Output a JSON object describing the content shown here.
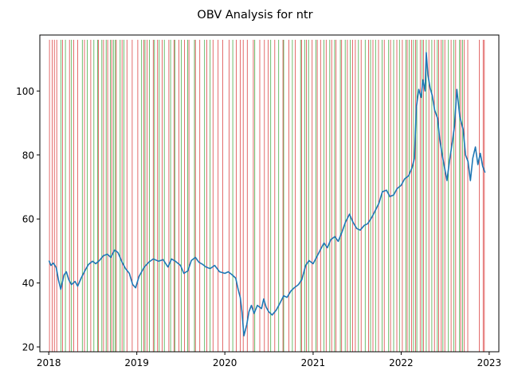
{
  "chart_data": {
    "type": "line",
    "title": "OBV Analysis for ntr",
    "xlabel": "",
    "ylabel": "",
    "x_tick_labels": [
      "2018",
      "2019",
      "2020",
      "2021",
      "2022",
      "2023"
    ],
    "y_tick_labels": [
      "20",
      "40",
      "60",
      "80",
      "100"
    ],
    "xlim": [
      "2017-11-25",
      "2023-02-10"
    ],
    "ylim": [
      18.5,
      117.5
    ],
    "grid": false,
    "series": [
      {
        "color": "#1f77b4",
        "points": [
          [
            "2018-01-02",
            47.0
          ],
          [
            "2018-01-10",
            45.5
          ],
          [
            "2018-01-20",
            46.2
          ],
          [
            "2018-02-01",
            44.8
          ],
          [
            "2018-02-10",
            41.0
          ],
          [
            "2018-02-20",
            38.0
          ],
          [
            "2018-03-05",
            42.5
          ],
          [
            "2018-03-15",
            43.5
          ],
          [
            "2018-03-25",
            41.0
          ],
          [
            "2018-04-05",
            39.5
          ],
          [
            "2018-04-20",
            40.5
          ],
          [
            "2018-05-01",
            39.0
          ],
          [
            "2018-05-15",
            41.5
          ],
          [
            "2018-06-01",
            44.0
          ],
          [
            "2018-06-15",
            45.8
          ],
          [
            "2018-07-01",
            46.8
          ],
          [
            "2018-07-15",
            46.0
          ],
          [
            "2018-08-01",
            47.2
          ],
          [
            "2018-08-15",
            48.5
          ],
          [
            "2018-09-01",
            49.0
          ],
          [
            "2018-09-15",
            48.0
          ],
          [
            "2018-10-01",
            50.3
          ],
          [
            "2018-10-15",
            49.5
          ],
          [
            "2018-11-01",
            46.5
          ],
          [
            "2018-11-15",
            44.5
          ],
          [
            "2018-12-01",
            43.0
          ],
          [
            "2018-12-15",
            39.5
          ],
          [
            "2018-12-27",
            38.5
          ],
          [
            "2019-01-10",
            42.0
          ],
          [
            "2019-02-01",
            45.0
          ],
          [
            "2019-02-20",
            46.5
          ],
          [
            "2019-03-10",
            47.5
          ],
          [
            "2019-04-01",
            46.8
          ],
          [
            "2019-04-20",
            47.3
          ],
          [
            "2019-05-10",
            45.0
          ],
          [
            "2019-05-25",
            47.5
          ],
          [
            "2019-06-10",
            46.8
          ],
          [
            "2019-07-01",
            45.5
          ],
          [
            "2019-07-15",
            43.0
          ],
          [
            "2019-08-01",
            43.8
          ],
          [
            "2019-08-15",
            47.0
          ],
          [
            "2019-09-01",
            48.0
          ],
          [
            "2019-09-15",
            46.5
          ],
          [
            "2019-10-01",
            45.8
          ],
          [
            "2019-10-15",
            45.0
          ],
          [
            "2019-11-01",
            44.5
          ],
          [
            "2019-11-20",
            45.5
          ],
          [
            "2019-12-10",
            43.5
          ],
          [
            "2020-01-01",
            43.0
          ],
          [
            "2020-01-15",
            43.5
          ],
          [
            "2020-02-01",
            42.5
          ],
          [
            "2020-02-15",
            41.5
          ],
          [
            "2020-02-25",
            38.0
          ],
          [
            "2020-03-05",
            35.5
          ],
          [
            "2020-03-12",
            31.0
          ],
          [
            "2020-03-20",
            23.5
          ],
          [
            "2020-04-01",
            27.0
          ],
          [
            "2020-04-10",
            31.0
          ],
          [
            "2020-04-20",
            33.0
          ],
          [
            "2020-05-01",
            30.5
          ],
          [
            "2020-05-15",
            33.0
          ],
          [
            "2020-06-01",
            32.0
          ],
          [
            "2020-06-10",
            35.0
          ],
          [
            "2020-06-20",
            32.5
          ],
          [
            "2020-07-01",
            31.0
          ],
          [
            "2020-07-15",
            30.0
          ],
          [
            "2020-08-01",
            31.5
          ],
          [
            "2020-08-15",
            33.5
          ],
          [
            "2020-09-01",
            36.0
          ],
          [
            "2020-09-15",
            35.5
          ],
          [
            "2020-10-01",
            37.5
          ],
          [
            "2020-10-15",
            38.5
          ],
          [
            "2020-11-01",
            39.5
          ],
          [
            "2020-11-15",
            41.0
          ],
          [
            "2020-12-01",
            45.5
          ],
          [
            "2020-12-15",
            47.0
          ],
          [
            "2021-01-01",
            46.0
          ],
          [
            "2021-01-15",
            48.0
          ],
          [
            "2021-02-01",
            50.5
          ],
          [
            "2021-02-15",
            52.5
          ],
          [
            "2021-03-01",
            51.0
          ],
          [
            "2021-03-15",
            53.5
          ],
          [
            "2021-04-01",
            54.5
          ],
          [
            "2021-04-15",
            53.0
          ],
          [
            "2021-05-01",
            56.0
          ],
          [
            "2021-05-15",
            59.0
          ],
          [
            "2021-06-01",
            61.5
          ],
          [
            "2021-06-15",
            59.0
          ],
          [
            "2021-07-01",
            57.0
          ],
          [
            "2021-07-15",
            56.5
          ],
          [
            "2021-08-01",
            58.0
          ],
          [
            "2021-08-15",
            58.5
          ],
          [
            "2021-09-01",
            60.5
          ],
          [
            "2021-09-15",
            62.5
          ],
          [
            "2021-10-01",
            65.0
          ],
          [
            "2021-10-15",
            68.5
          ],
          [
            "2021-11-01",
            69.0
          ],
          [
            "2021-11-15",
            67.0
          ],
          [
            "2021-12-01",
            67.5
          ],
          [
            "2021-12-15",
            69.5
          ],
          [
            "2022-01-01",
            70.5
          ],
          [
            "2022-01-15",
            72.5
          ],
          [
            "2022-02-01",
            73.5
          ],
          [
            "2022-02-15",
            76.0
          ],
          [
            "2022-02-25",
            79.0
          ],
          [
            "2022-03-05",
            95.0
          ],
          [
            "2022-03-15",
            100.5
          ],
          [
            "2022-03-25",
            98.0
          ],
          [
            "2022-04-01",
            103.5
          ],
          [
            "2022-04-10",
            100.0
          ],
          [
            "2022-04-15",
            112.0
          ],
          [
            "2022-04-22",
            105.0
          ],
          [
            "2022-05-01",
            101.0
          ],
          [
            "2022-05-10",
            98.5
          ],
          [
            "2022-05-20",
            94.0
          ],
          [
            "2022-06-01",
            91.5
          ],
          [
            "2022-06-10",
            85.0
          ],
          [
            "2022-06-20",
            80.0
          ],
          [
            "2022-06-30",
            76.0
          ],
          [
            "2022-07-10",
            72.0
          ],
          [
            "2022-07-20",
            78.0
          ],
          [
            "2022-08-01",
            84.0
          ],
          [
            "2022-08-10",
            89.0
          ],
          [
            "2022-08-20",
            100.5
          ],
          [
            "2022-09-01",
            92.0
          ],
          [
            "2022-09-15",
            88.0
          ],
          [
            "2022-09-25",
            80.0
          ],
          [
            "2022-10-05",
            78.0
          ],
          [
            "2022-10-15",
            72.0
          ],
          [
            "2022-10-25",
            79.0
          ],
          [
            "2022-11-05",
            82.5
          ],
          [
            "2022-11-15",
            77.0
          ],
          [
            "2022-11-25",
            80.5
          ],
          [
            "2022-12-05",
            76.5
          ],
          [
            "2022-12-15",
            74.5
          ]
        ]
      }
    ],
    "signals": {
      "buy_color": "#2ca02c",
      "sell_color": "#d62728",
      "buy_dates": [
        "2018-02-21",
        "2018-03-11",
        "2018-04-05",
        "2018-05-20",
        "2018-06-10",
        "2018-07-07",
        "2018-07-23",
        "2018-08-09",
        "2018-08-27",
        "2018-09-13",
        "2018-09-26",
        "2018-10-04",
        "2018-10-24",
        "2018-11-09",
        "2019-01-21",
        "2019-02-04",
        "2019-02-22",
        "2019-03-15",
        "2019-04-04",
        "2019-04-25",
        "2019-05-21",
        "2019-06-08",
        "2019-07-04",
        "2019-07-31",
        "2019-08-28",
        "2019-10-09",
        "2019-11-01",
        "2020-02-03",
        "2020-05-04",
        "2020-07-09",
        "2020-08-11",
        "2020-09-01",
        "2020-10-07",
        "2020-11-10",
        "2020-11-27",
        "2020-12-13",
        "2021-01-12",
        "2021-02-15",
        "2021-03-11",
        "2021-03-31",
        "2021-04-24",
        "2021-05-14",
        "2021-06-04",
        "2021-07-08",
        "2021-08-05",
        "2021-08-27",
        "2021-09-17",
        "2021-10-14",
        "2021-11-10",
        "2021-12-01",
        "2021-12-25",
        "2022-01-20",
        "2022-02-03",
        "2022-02-21",
        "2022-03-07",
        "2022-03-29",
        "2022-04-15",
        "2022-05-08",
        "2022-05-31",
        "2022-06-23",
        "2022-07-16",
        "2022-08-07",
        "2022-08-31",
        "2022-09-13"
      ],
      "sell_dates": [
        "2018-01-04",
        "2018-01-15",
        "2018-01-24",
        "2018-02-03",
        "2018-02-27",
        "2018-03-28",
        "2018-04-14",
        "2018-05-01",
        "2018-05-29",
        "2018-06-24",
        "2018-07-26",
        "2018-08-16",
        "2018-09-02",
        "2018-09-19",
        "2018-10-08",
        "2018-11-01",
        "2018-11-21",
        "2018-12-13",
        "2019-01-05",
        "2019-01-30",
        "2019-02-13",
        "2019-03-10",
        "2019-03-28",
        "2019-04-16",
        "2019-05-14",
        "2019-06-04",
        "2019-06-25",
        "2019-07-18",
        "2019-08-05",
        "2019-09-01",
        "2019-09-19",
        "2019-10-18",
        "2019-11-13",
        "2019-12-04",
        "2019-12-23",
        "2020-01-19",
        "2020-02-17",
        "2020-03-05",
        "2020-03-17",
        "2020-04-03",
        "2020-04-28",
        "2020-05-25",
        "2020-06-13",
        "2020-06-29",
        "2020-07-26",
        "2020-08-29",
        "2020-09-22",
        "2020-10-19",
        "2020-11-14",
        "2020-12-04",
        "2020-12-28",
        "2021-01-18",
        "2021-02-01",
        "2021-02-24",
        "2021-03-19",
        "2021-04-06",
        "2021-04-29",
        "2021-05-23",
        "2021-06-14",
        "2021-06-25",
        "2021-07-19",
        "2021-08-19",
        "2021-09-06",
        "2021-09-29",
        "2021-10-23",
        "2021-11-18",
        "2021-12-14",
        "2022-01-06",
        "2022-01-26",
        "2022-02-13",
        "2022-03-02",
        "2022-03-21",
        "2022-04-04",
        "2022-04-26",
        "2022-05-19",
        "2022-06-06",
        "2022-06-16",
        "2022-07-01",
        "2022-07-27",
        "2022-08-15",
        "2022-09-05",
        "2022-09-20",
        "2022-10-04",
        "2022-11-21",
        "2022-12-07",
        "2022-12-12"
      ]
    }
  }
}
